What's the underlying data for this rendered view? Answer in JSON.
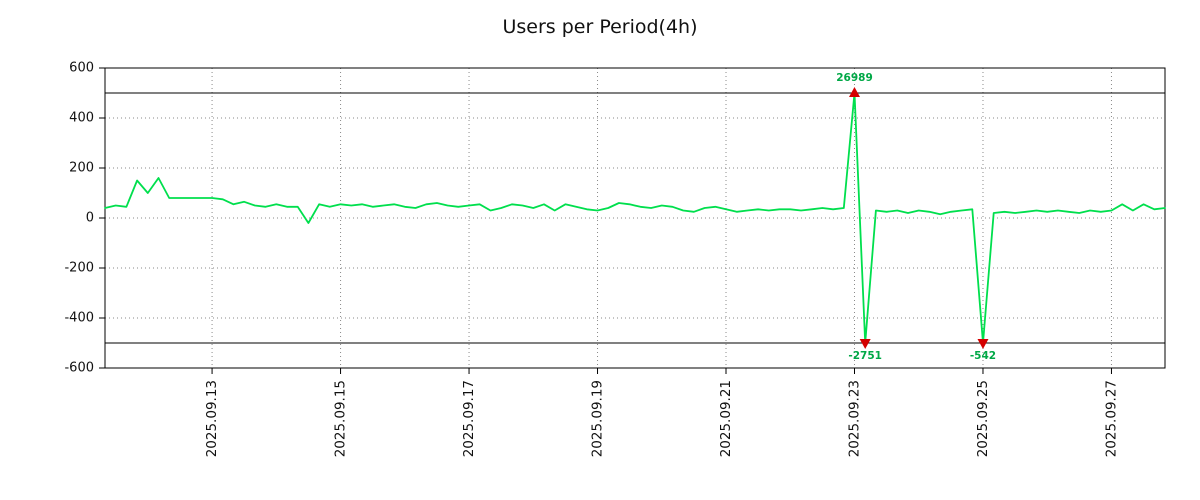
{
  "chart_data": {
    "type": "line",
    "title": "Users per Period(4h)",
    "xlabel": "",
    "ylabel": "",
    "ylim": [
      -600,
      600
    ],
    "y_ticks": [
      -600,
      -400,
      -200,
      0,
      200,
      400,
      600
    ],
    "grid": true,
    "legend_position": "none",
    "bound_lines": [
      500,
      -500
    ],
    "line_color": "#00df4d",
    "marker_color": "#d40000",
    "annotation_color": "#00a846",
    "x_tick_labels": [
      "2025.09.13",
      "2025.09.15",
      "2025.09.17",
      "2025.09.19",
      "2025.09.21",
      "2025.09.23",
      "2025.09.25",
      "2025.09.27"
    ],
    "x_tick_indices": [
      10,
      22,
      34,
      46,
      58,
      70,
      82,
      94
    ],
    "points_per_day": 6,
    "values": [
      40,
      50,
      45,
      150,
      100,
      160,
      80,
      80,
      80,
      80,
      80,
      75,
      55,
      65,
      50,
      45,
      55,
      45,
      45,
      -20,
      55,
      45,
      55,
      50,
      55,
      45,
      50,
      55,
      45,
      40,
      55,
      60,
      50,
      45,
      50,
      55,
      30,
      40,
      55,
      50,
      40,
      55,
      30,
      55,
      45,
      35,
      30,
      40,
      60,
      55,
      45,
      40,
      50,
      45,
      30,
      25,
      40,
      45,
      35,
      25,
      30,
      35,
      30,
      35,
      35,
      30,
      35,
      40,
      35,
      40,
      26989,
      -2751,
      30,
      25,
      30,
      20,
      30,
      25,
      15,
      25,
      30,
      35,
      -542,
      20,
      25,
      20,
      25,
      30,
      25,
      30,
      25,
      20,
      30,
      25,
      30,
      55,
      30,
      55,
      35,
      40
    ],
    "annotations": [
      {
        "index": 70,
        "value": 26989,
        "label": "26989",
        "placement": "above",
        "marker": "triangle-up"
      },
      {
        "index": 71,
        "value": -2751,
        "label": "-2751",
        "placement": "below",
        "marker": "triangle-down"
      },
      {
        "index": 82,
        "value": -542,
        "label": "-542",
        "placement": "below",
        "marker": "triangle-down"
      }
    ]
  }
}
